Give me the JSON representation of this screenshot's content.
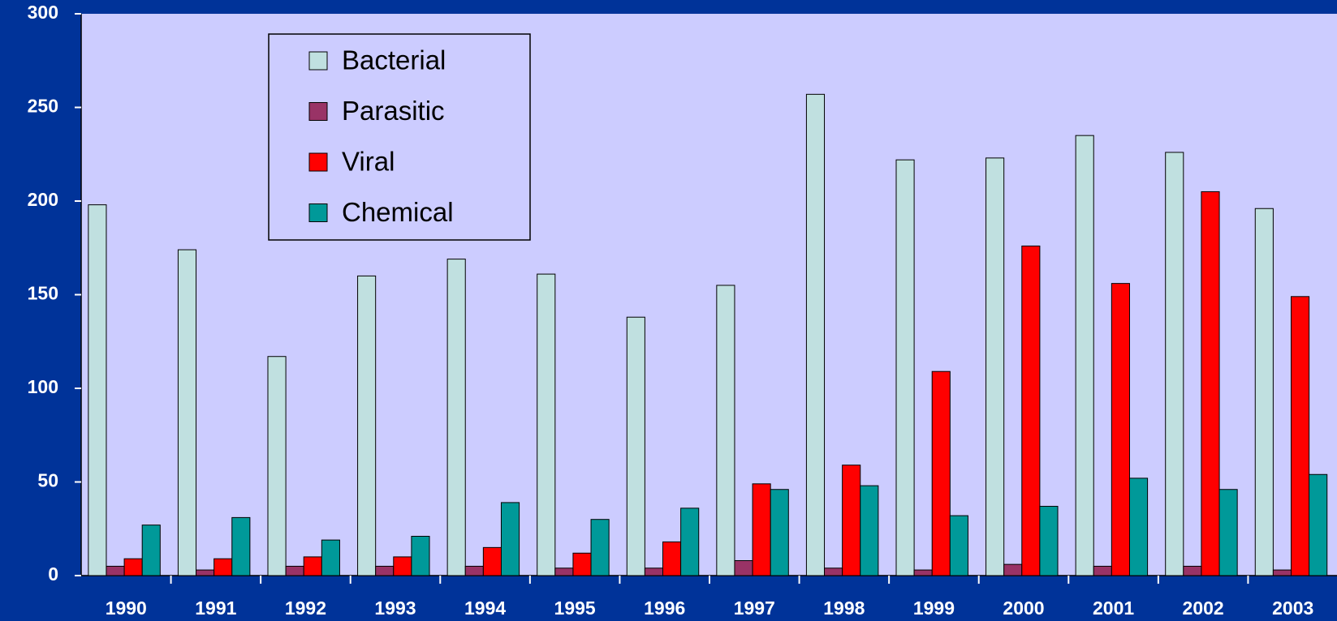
{
  "chart_data": {
    "type": "bar",
    "categories": [
      "1990",
      "1991",
      "1992",
      "1993",
      "1994",
      "1995",
      "1996",
      "1997",
      "1998",
      "1999",
      "2000",
      "2001",
      "2002",
      "2003"
    ],
    "series": [
      {
        "name": "Bacterial",
        "color": "#c0e0e0",
        "values": [
          198,
          174,
          117,
          160,
          169,
          161,
          138,
          155,
          257,
          222,
          223,
          235,
          226,
          196
        ]
      },
      {
        "name": "Parasitic",
        "color": "#993366",
        "values": [
          5,
          3,
          5,
          5,
          5,
          4,
          4,
          8,
          4,
          3,
          6,
          5,
          5,
          3
        ]
      },
      {
        "name": "Viral",
        "color": "#ff0000",
        "values": [
          9,
          9,
          10,
          10,
          15,
          12,
          18,
          49,
          59,
          109,
          176,
          156,
          205,
          149
        ]
      },
      {
        "name": "Chemical",
        "color": "#009999",
        "values": [
          27,
          31,
          19,
          21,
          39,
          30,
          36,
          46,
          48,
          32,
          37,
          52,
          46,
          54
        ]
      }
    ],
    "ylim": [
      0,
      300
    ],
    "yticks": [
      0,
      50,
      100,
      150,
      200,
      250,
      300
    ],
    "grid": false,
    "legend": "top-left"
  }
}
